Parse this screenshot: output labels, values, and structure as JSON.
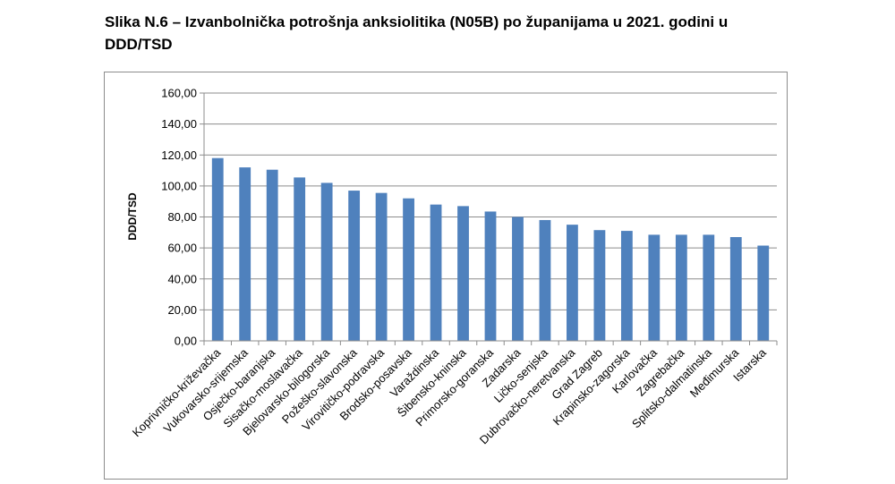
{
  "title": "Slika N.6 – Izvanbolnička potrošnja anksiolitika (N05B) po županijama u 2021. godini u DDD/TSD",
  "chart_data": {
    "type": "bar",
    "title": "",
    "ylabel": "DDD/TSD",
    "xlabel": "",
    "ylim": [
      0,
      160
    ],
    "yticks": [
      "0,00",
      "20,00",
      "40,00",
      "60,00",
      "80,00",
      "100,00",
      "120,00",
      "140,00",
      "160,00"
    ],
    "grid": true,
    "legend": "none",
    "bar_color": "#4f81bd",
    "categories": [
      "Koprivničko-križevačka",
      "Vukovarsko-srijemska",
      "Osječko-baranjska",
      "Sisačko-moslavačka",
      "Bjelovarsko-bilogorska",
      "Požeško-slavonska",
      "Virovitičko-podravska",
      "Brodsko-posavska",
      "Varaždinska",
      "Šibensko-kninska",
      "Primorsko-goranska",
      "Zadarska",
      "Ličko-senjska",
      "Dubrovačko-neretvanska",
      "Grad Zagreb",
      "Krapinsko-zagorska",
      "Karlovačka",
      "Zagrebačka",
      "Splitsko-dalmatinska",
      "Međimurska",
      "Istarska"
    ],
    "values": [
      118.0,
      112.0,
      110.5,
      105.5,
      102.0,
      97.0,
      95.5,
      92.0,
      88.0,
      87.0,
      83.5,
      80.0,
      78.0,
      75.0,
      71.5,
      71.0,
      68.5,
      68.5,
      68.5,
      67.0,
      61.5
    ]
  }
}
